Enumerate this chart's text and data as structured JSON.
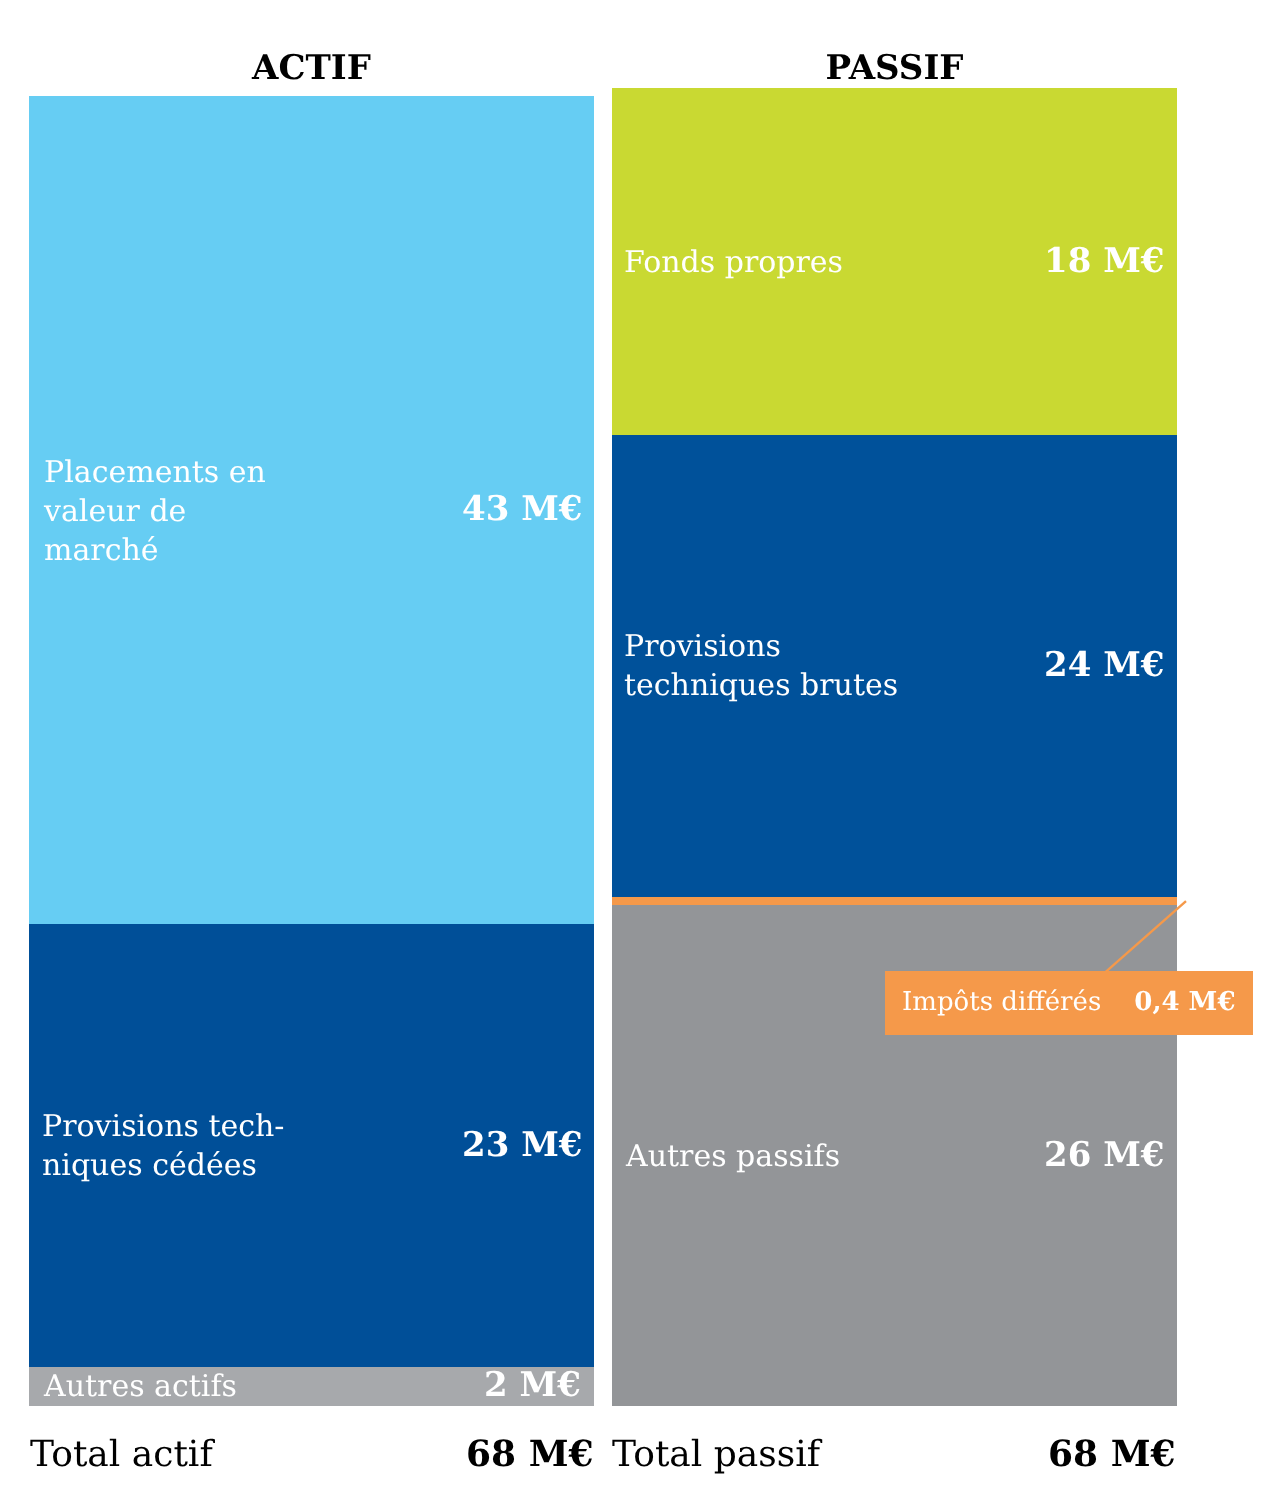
{
  "chart_data": {
    "type": "bar",
    "stacked": true,
    "legend": false,
    "categories": [
      "ACTIF",
      "PASSIF"
    ],
    "series": [
      {
        "name": "Autres actifs",
        "color": "#a7a9ac",
        "values": [
          2,
          null
        ],
        "value_labels": [
          "2 M€",
          null
        ]
      },
      {
        "name": "Provisions tech-\nniques cédées",
        "color": "#004f98",
        "values": [
          23,
          null
        ],
        "value_labels": [
          "23 M€",
          null
        ]
      },
      {
        "name": "Placements en\nvaleur de\nmarché",
        "color": "#66cdf3",
        "values": [
          43,
          null
        ],
        "value_labels": [
          "43 M€",
          null
        ]
      },
      {
        "name": "Autres passifs",
        "color": "#939598",
        "values": [
          null,
          26
        ],
        "value_labels": [
          null,
          "26 M€"
        ]
      },
      {
        "name": "Impôts différés",
        "color": "#f5994a",
        "values": [
          null,
          0.4
        ],
        "value_labels": [
          null,
          "0,4 M€"
        ]
      },
      {
        "name": "Provisions\ntechniques brutes",
        "color": "#00519a",
        "values": [
          null,
          24
        ],
        "value_labels": [
          null,
          "24 M€"
        ]
      },
      {
        "name": "Fonds propres",
        "color": "#c9d932",
        "values": [
          null,
          18
        ],
        "value_labels": [
          null,
          "18 M€"
        ]
      }
    ],
    "totals": [
      "68 M€",
      "68 M€"
    ],
    "annotations": [
      "Total actif",
      "Total passif"
    ]
  }
}
